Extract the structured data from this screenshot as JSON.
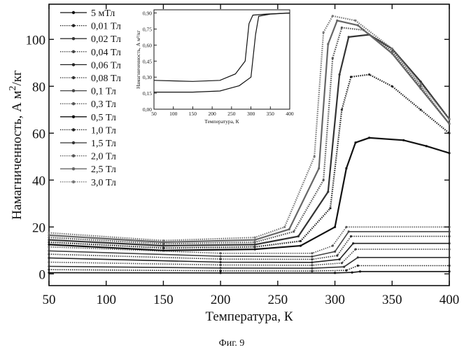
{
  "figure_caption": "Фиг. 9",
  "chart_data": [
    {
      "type": "line",
      "xlabel": "Температура, К",
      "ylabel": "Намагниченность, А м²/кг",
      "ylabel_main": "Намагниченность, А м",
      "ylabel_sup": "2",
      "ylabel_tail": "/кг",
      "xlim": [
        50,
        400
      ],
      "ylim": [
        -5,
        115
      ],
      "xticks": [
        50,
        100,
        150,
        200,
        250,
        300,
        350,
        400
      ],
      "yticks": [
        0,
        20,
        40,
        60,
        80,
        100
      ],
      "legend_position": "top-left",
      "series": [
        {
          "name": "5 мТл",
          "color": "#111111",
          "values": [
            [
              50,
              0.5
            ],
            [
              200,
              0.4
            ],
            [
              300,
              0.4
            ],
            [
              315,
              0.6
            ],
            [
              322,
              1.0
            ],
            [
              400,
              1.0
            ]
          ]
        },
        {
          "name": "0,01 Тл",
          "color": "#222222",
          "values": [
            [
              50,
              1.8
            ],
            [
              200,
              1.3
            ],
            [
              280,
              1.2
            ],
            [
              310,
              1.5
            ],
            [
              320,
              3.5
            ],
            [
              400,
              3.5
            ]
          ]
        },
        {
          "name": "0,02 Тл",
          "color": "#333333",
          "values": [
            [
              50,
              3.2
            ],
            [
              200,
              2.5
            ],
            [
              280,
              2.4
            ],
            [
              308,
              3.0
            ],
            [
              320,
              7.0
            ],
            [
              400,
              7.0
            ]
          ]
        },
        {
          "name": "0,04 Тл",
          "color": "#444444",
          "values": [
            [
              50,
              5.0
            ],
            [
              200,
              3.8
            ],
            [
              280,
              3.7
            ],
            [
              306,
              4.6
            ],
            [
              318,
              10.5
            ],
            [
              400,
              10.5
            ]
          ]
        },
        {
          "name": "0,06 Тл",
          "color": "#222222",
          "values": [
            [
              50,
              6.8
            ],
            [
              200,
              5.0
            ],
            [
              280,
              4.9
            ],
            [
              304,
              6.2
            ],
            [
              316,
              13.0
            ],
            [
              400,
              13.0
            ]
          ]
        },
        {
          "name": "0,08 Тл",
          "color": "#333333",
          "values": [
            [
              50,
              8.4
            ],
            [
              200,
              6.3
            ],
            [
              280,
              6.2
            ],
            [
              302,
              7.8
            ],
            [
              314,
              16.0
            ],
            [
              400,
              16.0
            ]
          ]
        },
        {
          "name": "0,1 Тл",
          "color": "#444444",
          "values": [
            [
              50,
              9.8
            ],
            [
              200,
              7.5
            ],
            [
              280,
              7.4
            ],
            [
              300,
              9.5
            ],
            [
              312,
              18.0
            ],
            [
              400,
              18.0
            ]
          ]
        },
        {
          "name": "0,3 Тл",
          "color": "#555555",
          "values": [
            [
              50,
              11.5
            ],
            [
              200,
              8.8
            ],
            [
              280,
              8.8
            ],
            [
              298,
              12.0
            ],
            [
              310,
              20.0
            ],
            [
              400,
              20.0
            ]
          ]
        },
        {
          "name": "0,5 Тл",
          "color": "#111111",
          "values": [
            [
              50,
              12.5
            ],
            [
              150,
              10.0
            ],
            [
              230,
              10.5
            ],
            [
              270,
              12.0
            ],
            [
              300,
              20.0
            ],
            [
              310,
              45.0
            ],
            [
              318,
              56.0
            ],
            [
              330,
              58.0
            ],
            [
              360,
              57.0
            ],
            [
              380,
              54.5
            ],
            [
              400,
              51.5
            ]
          ]
        },
        {
          "name": "1,0 Тл",
          "color": "#222222",
          "values": [
            [
              50,
              13.5
            ],
            [
              150,
              11.0
            ],
            [
              230,
              11.5
            ],
            [
              270,
              14.0
            ],
            [
              296,
              28.0
            ],
            [
              306,
              70.0
            ],
            [
              314,
              84.0
            ],
            [
              330,
              85.0
            ],
            [
              350,
              80.0
            ],
            [
              375,
              70.0
            ],
            [
              400,
              60.0
            ]
          ]
        },
        {
          "name": "1,5 Тл",
          "color": "#333333",
          "values": [
            [
              50,
              14.5
            ],
            [
              150,
              12.0
            ],
            [
              230,
              12.5
            ],
            [
              268,
              16.0
            ],
            [
              294,
              35.0
            ],
            [
              304,
              85.0
            ],
            [
              312,
              101.0
            ],
            [
              330,
              102.0
            ],
            [
              350,
              96.0
            ],
            [
              375,
              82.0
            ],
            [
              400,
              66.0
            ]
          ]
        },
        {
          "name": "2,0 Тл",
          "color": "#555555",
          "values": [
            [
              50,
              15.5
            ],
            [
              150,
              12.8
            ],
            [
              230,
              13.5
            ],
            [
              264,
              18.0
            ],
            [
              290,
              40.0
            ],
            [
              298,
              92.0
            ],
            [
              306,
              105.0
            ],
            [
              325,
              104.0
            ],
            [
              350,
              95.0
            ],
            [
              375,
              80.0
            ],
            [
              400,
              64.0
            ]
          ]
        },
        {
          "name": "2,5 Тл",
          "color": "#666666",
          "values": [
            [
              50,
              16.5
            ],
            [
              150,
              13.5
            ],
            [
              230,
              14.5
            ],
            [
              260,
              19.0
            ],
            [
              286,
              45.0
            ],
            [
              294,
              98.0
            ],
            [
              302,
              108.0
            ],
            [
              320,
              106.0
            ],
            [
              350,
              94.0
            ],
            [
              375,
              79.0
            ],
            [
              400,
              64.0
            ]
          ]
        },
        {
          "name": "3,0 Тл",
          "color": "#777777",
          "values": [
            [
              50,
              17.5
            ],
            [
              150,
              14.2
            ],
            [
              230,
              15.5
            ],
            [
              256,
              20.0
            ],
            [
              282,
              50.0
            ],
            [
              290,
              103.0
            ],
            [
              298,
              110.0
            ],
            [
              318,
              108.0
            ],
            [
              350,
              96.0
            ],
            [
              375,
              81.0
            ],
            [
              400,
              66.0
            ]
          ]
        }
      ]
    },
    {
      "type": "line",
      "xlabel": "Температура, К",
      "ylabel": "Намагниченность, А м²/кг",
      "xlim": [
        50,
        400
      ],
      "ylim": [
        0.0,
        0.93
      ],
      "xticks": [
        50,
        100,
        150,
        200,
        250,
        300,
        350,
        400
      ],
      "yticks": [
        "0,00",
        "0,15",
        "0,30",
        "0,45",
        "0,60",
        "0,75",
        "0,90"
      ],
      "series": [
        {
          "color": "#111111",
          "values": [
            [
              50,
              0.27
            ],
            [
              150,
              0.26
            ],
            [
              220,
              0.27
            ],
            [
              260,
              0.33
            ],
            [
              285,
              0.45
            ],
            [
              295,
              0.8
            ],
            [
              305,
              0.88
            ],
            [
              340,
              0.89
            ],
            [
              400,
              0.9
            ]
          ]
        },
        {
          "color": "#111111",
          "values": [
            [
              50,
              0.16
            ],
            [
              150,
              0.16
            ],
            [
              220,
              0.17
            ],
            [
              270,
              0.22
            ],
            [
              300,
              0.3
            ],
            [
              312,
              0.7
            ],
            [
              320,
              0.87
            ],
            [
              350,
              0.89
            ],
            [
              400,
              0.9
            ]
          ]
        }
      ]
    }
  ]
}
